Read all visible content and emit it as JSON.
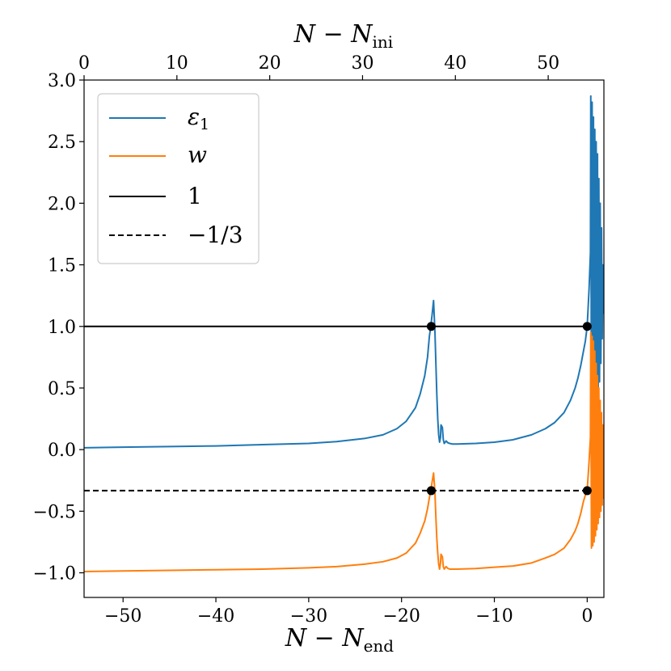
{
  "chart_data": {
    "type": "line",
    "xlabel_bottom": "N − N",
    "xlabel_bottom_sub": "end",
    "xlabel_top": "N − N",
    "xlabel_top_sub": "ini",
    "xlim": [
      -54.2,
      1.8
    ],
    "ylim": [
      -1.2,
      3.0
    ],
    "x_ticks": [
      -50,
      -40,
      -30,
      -20,
      -10,
      0
    ],
    "x_tick_labels": [
      "−50",
      "−40",
      "−30",
      "−20",
      "−10",
      "0"
    ],
    "top_xlim": [
      0,
      56
    ],
    "top_ticks": [
      0,
      10,
      20,
      30,
      40,
      50
    ],
    "top_tick_labels": [
      "0",
      "10",
      "20",
      "30",
      "40",
      "50"
    ],
    "y_ticks": [
      -1.0,
      -0.5,
      0.0,
      0.5,
      1.0,
      1.5,
      2.0,
      2.5,
      3.0
    ],
    "y_tick_labels": [
      "−1.0",
      "−0.5",
      "0.0",
      "0.5",
      "1.0",
      "1.5",
      "2.0",
      "2.5",
      "3.0"
    ],
    "legend_position": "top-left",
    "series": [
      {
        "name": "ε",
        "name_sub": "1",
        "color": "#1f77b4",
        "style": "solid",
        "x": [
          -54.2,
          -50,
          -45,
          -40,
          -35,
          -30,
          -27,
          -24,
          -22,
          -20.5,
          -19.5,
          -18.5,
          -18,
          -17.5,
          -17.2,
          -17.0,
          -16.85,
          -16.7,
          -16.55,
          -16.4,
          -16.3,
          -16.2,
          -16.1,
          -16.0,
          -15.9,
          -15.8,
          -15.75,
          -15.6,
          -15.5,
          -15.4,
          -15.3,
          -15.2,
          -15.0,
          -14.8,
          -14.5,
          -14,
          -12,
          -10,
          -8,
          -6,
          -4.5,
          -3.5,
          -2.5,
          -1.8,
          -1.3,
          -1.0,
          -0.7,
          -0.4,
          -0.2,
          0,
          0.2,
          0.35
        ],
        "values": [
          0.015,
          0.02,
          0.025,
          0.03,
          0.04,
          0.05,
          0.065,
          0.09,
          0.12,
          0.17,
          0.23,
          0.34,
          0.45,
          0.6,
          0.75,
          0.92,
          1.0,
          1.1,
          1.21,
          0.95,
          0.7,
          0.45,
          0.25,
          0.12,
          0.06,
          0.1,
          0.2,
          0.18,
          0.08,
          0.05,
          0.06,
          0.07,
          0.055,
          0.05,
          0.045,
          0.045,
          0.05,
          0.06,
          0.08,
          0.12,
          0.17,
          0.22,
          0.3,
          0.4,
          0.5,
          0.58,
          0.68,
          0.8,
          0.88,
          1.0,
          1.3,
          1.6
        ]
      },
      {
        "name": "w",
        "color": "#ff7f0e",
        "style": "solid",
        "x": [
          -54.2,
          -50,
          -45,
          -40,
          -35,
          -30,
          -27,
          -24,
          -22,
          -20.5,
          -19.5,
          -18.5,
          -18,
          -17.5,
          -17.2,
          -17.0,
          -16.85,
          -16.7,
          -16.55,
          -16.4,
          -16.3,
          -16.2,
          -16.1,
          -16.0,
          -15.9,
          -15.8,
          -15.75,
          -15.6,
          -15.5,
          -15.4,
          -15.3,
          -15.2,
          -15.0,
          -14.8,
          -14.5,
          -14,
          -12,
          -10,
          -8,
          -6,
          -4.5,
          -3.5,
          -2.5,
          -1.8,
          -1.3,
          -1.0,
          -0.7,
          -0.4,
          -0.2,
          0,
          0.2,
          0.35
        ],
        "values": [
          -0.99,
          -0.985,
          -0.98,
          -0.975,
          -0.97,
          -0.96,
          -0.95,
          -0.93,
          -0.91,
          -0.88,
          -0.84,
          -0.76,
          -0.68,
          -0.58,
          -0.48,
          -0.39,
          -0.33,
          -0.26,
          -0.19,
          -0.35,
          -0.55,
          -0.72,
          -0.84,
          -0.93,
          -0.97,
          -0.92,
          -0.85,
          -0.87,
          -0.95,
          -0.97,
          -0.96,
          -0.95,
          -0.965,
          -0.97,
          -0.97,
          -0.97,
          -0.965,
          -0.955,
          -0.945,
          -0.92,
          -0.88,
          -0.85,
          -0.8,
          -0.73,
          -0.66,
          -0.6,
          -0.52,
          -0.42,
          -0.37,
          -0.33,
          -0.1,
          0.1
        ]
      },
      {
        "name": "1",
        "color": "#000000",
        "style": "solid",
        "constant": 1.0
      },
      {
        "name": "−1/3",
        "color": "#000000",
        "style": "dashed",
        "constant": -0.3333
      }
    ],
    "oscillation": {
      "x_start": 0.35,
      "x_end": 1.8,
      "eps_max": [
        2.87,
        2.82,
        2.7,
        2.6,
        2.5,
        2.4,
        2.2,
        2.0,
        1.8,
        1.5
      ],
      "eps_min": [
        0.0,
        0.0,
        0.02,
        0.1,
        0.25,
        0.4,
        0.55,
        0.7,
        0.9,
        1.1
      ],
      "w_max": [
        0.95,
        0.92,
        0.88,
        0.8,
        0.7,
        0.6,
        0.5,
        0.4,
        0.3,
        0.2
      ],
      "w_min": [
        -0.8,
        -0.78,
        -0.75,
        -0.7,
        -0.65,
        -0.6,
        -0.55,
        -0.5,
        -0.45,
        -0.4
      ]
    },
    "markers": [
      {
        "x": -16.8,
        "y": 1.0
      },
      {
        "x": 0.0,
        "y": 1.0
      },
      {
        "x": -16.8,
        "y": -0.3333
      },
      {
        "x": 0.0,
        "y": -0.3333
      }
    ]
  }
}
